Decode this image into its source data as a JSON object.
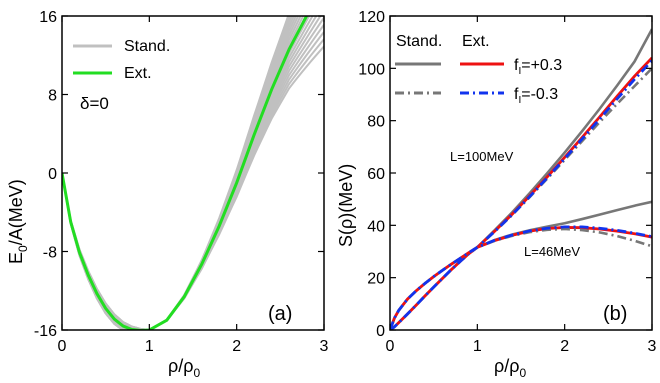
{
  "colors": {
    "standard_band": "#c0c0c0",
    "extended_symmetric": "#22dd22",
    "standard_symmetry": "#777777",
    "ext_plus": "#ee1111",
    "ext_minus": "#1133ee"
  },
  "chart_data": [
    {
      "type": "line",
      "panel_label": "(a)",
      "xlabel_main": "ρ/ρ",
      "xlabel_sub": "0",
      "ylabel_main": "E",
      "ylabel_sub": "0",
      "ylabel_rest": "/A(MeV)",
      "xlim": [
        0,
        3
      ],
      "ylim": [
        -16,
        16
      ],
      "xticks": [
        0,
        1,
        2,
        3
      ],
      "yticks": [
        -16,
        -8,
        0,
        8,
        16
      ],
      "xtick_labels": [
        "0",
        "1",
        "2",
        "3"
      ],
      "ytick_labels": [
        "-16",
        "-8",
        "0",
        "8",
        "16"
      ],
      "annotation": "δ=0",
      "legend_position": "top-left",
      "legend": [
        {
          "label": "Stand.",
          "color": "#c0c0c0",
          "dash": "solid"
        },
        {
          "label": "Ext.",
          "color": "#22dd22",
          "dash": "solid"
        }
      ],
      "band_series": {
        "name": "Stand.",
        "count": 18,
        "minimum_point": [
          1.0,
          -16.0
        ],
        "value_at_x_3_range": [
          13.5,
          26
        ]
      },
      "series": [
        {
          "name": "Ext.",
          "x": [
            0,
            0.1,
            0.2,
            0.3,
            0.4,
            0.5,
            0.6,
            0.7,
            0.8,
            0.9,
            1.0,
            1.2,
            1.4,
            1.6,
            1.8,
            2.0,
            2.2,
            2.4,
            2.6,
            2.8
          ],
          "y": [
            0,
            -5.0,
            -8.1,
            -10.4,
            -12.3,
            -13.8,
            -14.9,
            -15.6,
            -15.95,
            -16.05,
            -16.0,
            -15.0,
            -12.6,
            -9.3,
            -5.4,
            -1.0,
            3.9,
            8.5,
            12.6,
            16.0
          ]
        }
      ]
    },
    {
      "type": "line",
      "panel_label": "(b)",
      "xlabel_main": "ρ/ρ",
      "xlabel_sub": "0",
      "ylabel": "S(ρ)(MeV)",
      "xlim": [
        0,
        3
      ],
      "ylim": [
        0,
        120
      ],
      "xticks": [
        0,
        1,
        2,
        3
      ],
      "yticks": [
        0,
        20,
        40,
        60,
        80,
        100,
        120
      ],
      "xtick_labels": [
        "0",
        "1",
        "2",
        "3"
      ],
      "ytick_labels": [
        "0",
        "20",
        "40",
        "60",
        "80",
        "100",
        "120"
      ],
      "legend_position": "top",
      "legend_header_stand": "Stand.",
      "legend_header_ext": "Ext.",
      "legend_fi_plus_main": "f",
      "legend_fi_plus_sub": "I",
      "legend_fi_plus_rest": "=+0.3",
      "legend_fi_minus_main": "f",
      "legend_fi_minus_sub": "I",
      "legend_fi_minus_rest": "=-0.3",
      "annotations": [
        "L=100MeV",
        "L=46MeV"
      ],
      "x": [
        0,
        0.05,
        0.1,
        0.2,
        0.3,
        0.4,
        0.5,
        0.6,
        0.7,
        0.8,
        0.9,
        1.0,
        1.2,
        1.4,
        1.6,
        1.8,
        2.0,
        2.2,
        2.4,
        2.6,
        2.8,
        3.0
      ],
      "series": [
        {
          "name": "Stand. f=+0.3 L=100MeV",
          "color": "#777777",
          "dash": "solid",
          "y": [
            0,
            1.2,
            2.8,
            6.1,
            9.5,
            13.0,
            16.4,
            19.7,
            23.0,
            26.1,
            29.1,
            31.6,
            38.2,
            45.0,
            52.3,
            59.9,
            67.8,
            76.0,
            84.5,
            93.4,
            102.6,
            115.0
          ]
        },
        {
          "name": "f=+0.3 L=100MeV",
          "color": "#ee1111",
          "dash": "solid",
          "y": [
            0,
            1.2,
            2.8,
            6.1,
            9.5,
            13.0,
            16.4,
            19.7,
            23.0,
            26.1,
            29.1,
            31.6,
            37.8,
            44.3,
            51.3,
            58.5,
            66.0,
            73.6,
            81.4,
            89.3,
            97.0,
            104.0
          ]
        },
        {
          "name": "Stand. f=-0.3 L=100MeV",
          "color": "#777777",
          "dash": "dashdot",
          "y": [
            0,
            1.2,
            2.8,
            6.1,
            9.5,
            13.0,
            16.4,
            19.7,
            23.0,
            26.1,
            29.1,
            31.6,
            37.6,
            44.0,
            50.8,
            57.8,
            65.0,
            72.2,
            79.4,
            86.4,
            93.2,
            100.0
          ]
        },
        {
          "name": "f=-0.3 L=100MeV",
          "color": "#1133ee",
          "dash": "dashdot",
          "y": [
            0,
            1.2,
            2.8,
            6.1,
            9.5,
            13.0,
            16.4,
            19.7,
            23.0,
            26.1,
            29.1,
            31.6,
            37.7,
            44.1,
            51.0,
            58.2,
            65.5,
            73.0,
            80.6,
            88.3,
            95.8,
            103.0
          ]
        },
        {
          "name": "Stand. f=+0.3 L=46MeV",
          "color": "#777777",
          "dash": "solid",
          "y": [
            0,
            4.5,
            7.5,
            11.8,
            15.0,
            17.8,
            20.4,
            22.8,
            25.1,
            27.3,
            29.5,
            31.6,
            34.4,
            36.5,
            38.1,
            39.5,
            40.8,
            42.4,
            44.1,
            45.8,
            47.5,
            49.0
          ]
        },
        {
          "name": "f=+0.3 L=46MeV",
          "color": "#ee1111",
          "dash": "solid",
          "y": [
            0,
            4.5,
            7.5,
            11.8,
            15.0,
            17.8,
            20.4,
            22.8,
            25.1,
            27.3,
            29.5,
            31.6,
            34.2,
            36.2,
            37.8,
            38.8,
            39.2,
            39.1,
            38.6,
            37.8,
            36.8,
            35.5
          ]
        },
        {
          "name": "Stand. f=-0.3 L=46MeV",
          "color": "#777777",
          "dash": "dashdot",
          "y": [
            0,
            4.5,
            7.5,
            11.8,
            15.0,
            17.8,
            20.4,
            22.8,
            25.1,
            27.3,
            29.5,
            31.6,
            34.1,
            36.0,
            37.4,
            38.3,
            38.6,
            38.2,
            37.3,
            35.9,
            34.1,
            32.0
          ]
        },
        {
          "name": "f=-0.3 L=46MeV",
          "color": "#1133ee",
          "dash": "dashdot",
          "y": [
            0,
            4.5,
            7.5,
            11.8,
            15.0,
            17.8,
            20.4,
            22.8,
            25.1,
            27.3,
            29.5,
            31.6,
            34.3,
            36.3,
            37.9,
            38.9,
            39.4,
            39.4,
            38.9,
            38.1,
            37.0,
            35.7
          ]
        }
      ]
    }
  ]
}
